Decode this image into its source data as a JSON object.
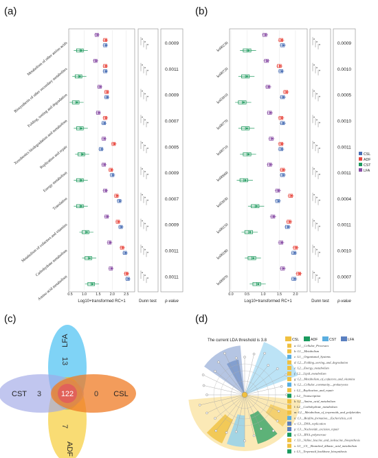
{
  "panels": {
    "a": "(a)",
    "b": "(b)",
    "c": "(c)",
    "d": "(d)"
  },
  "colors": {
    "CSL": "#4a6fb5",
    "ADF": "#e8483f",
    "CST": "#1f9a5e",
    "LFA": "#8a4fa6"
  },
  "groups_legend": [
    "CSL",
    "ADF",
    "CST",
    "LFA"
  ],
  "shared_labels": {
    "xlabel": "Log10+transformed RC+1",
    "dunn": "Dunn test",
    "pvalue": "p-value"
  },
  "chart_data": [
    {
      "type": "box",
      "panel": "a",
      "categories": [
        "Metabolism of other amino acids",
        "Biosynthesis of other secondary metabolites",
        "Folding, sorting and degradation",
        "Xenobiotics biodegradation and metabolism",
        "Replication and repair",
        "Energy metabolism",
        "Translation",
        "Metabolism of cofactors and vitamins",
        "Carbohydrate metabolism",
        "Amino acid metabolism"
      ],
      "xticks": [
        0.5,
        1.0,
        1.5,
        2.0,
        2.5
      ],
      "xlim": [
        0.5,
        2.75
      ],
      "xlabel": "Log10+transformed RC+1",
      "series": [
        {
          "name": "LFA",
          "medians": [
            1.45,
            1.4,
            1.55,
            1.5,
            1.7,
            1.7,
            1.75,
            1.8,
            1.9,
            1.95
          ]
        },
        {
          "name": "ADF",
          "medians": [
            1.75,
            1.75,
            1.8,
            1.75,
            2.05,
            1.95,
            2.15,
            2.2,
            2.35,
            2.5
          ]
        },
        {
          "name": "CSL",
          "medians": [
            1.75,
            1.75,
            1.8,
            1.7,
            1.6,
            2.0,
            2.25,
            2.3,
            2.45,
            2.55
          ]
        },
        {
          "name": "CST",
          "medians": [
            0.85,
            0.8,
            0.7,
            0.85,
            0.9,
            0.85,
            0.85,
            1.05,
            1.15,
            1.25
          ]
        }
      ],
      "pvalues": [
        "0.0009",
        "0.0011",
        "0.0009",
        "0.0007",
        "0.0005",
        "0.0009",
        "0.0007",
        "0.0009",
        "0.0011",
        "0.0011"
      ]
    },
    {
      "type": "box",
      "panel": "b",
      "categories": [
        "ko00230",
        "ko00720",
        "ko03010",
        "ko00770",
        "ko00710",
        "ko00660",
        "ko03030",
        "ko00250",
        "ko00280",
        "ko00970"
      ],
      "xticks": [
        0.0,
        0.5,
        1.0,
        1.5,
        2.0
      ],
      "xlim": [
        0.0,
        2.3
      ],
      "xlabel": "Log10+transformed RC+1",
      "series": [
        {
          "name": "LFA",
          "medians": [
            1.05,
            1.1,
            1.15,
            1.2,
            1.25,
            1.2,
            1.45,
            1.3,
            1.55,
            1.6
          ]
        },
        {
          "name": "ADF",
          "medians": [
            1.55,
            1.5,
            1.7,
            1.55,
            1.55,
            1.6,
            1.85,
            1.8,
            2.0,
            2.1
          ]
        },
        {
          "name": "CSL",
          "medians": [
            1.6,
            1.55,
            1.6,
            1.6,
            1.55,
            1.6,
            1.45,
            1.75,
            1.95,
            1.95
          ]
        },
        {
          "name": "CST",
          "medians": [
            0.5,
            0.45,
            0.35,
            0.45,
            0.5,
            0.4,
            0.75,
            0.55,
            0.65,
            0.8
          ]
        }
      ],
      "pvalues": [
        "0.0009",
        "0.0010",
        "0.0005",
        "0.0010",
        "0.0011",
        "0.0011",
        "0.0004",
        "0.0011",
        "0.0010",
        "0.0007"
      ]
    },
    {
      "type": "venn",
      "panel": "c",
      "sets": [
        "LFA",
        "CST",
        "CSL",
        "ADF"
      ],
      "unique": {
        "LFA": 13,
        "CST": 3,
        "CSL": 0,
        "ADF": 7
      },
      "shared_all": 122
    },
    {
      "type": "cladogram",
      "panel": "d",
      "title": "The current LDA threshold is 3.8",
      "legend": [
        "CSL",
        "ADF",
        "CST",
        "LFA"
      ],
      "items": [
        {
          "id": "a",
          "label": "a: L1__Cellular_Processes",
          "color": "#f0c040"
        },
        {
          "id": "b",
          "label": "b: L1__Metabolism",
          "color": "#f0c040"
        },
        {
          "id": "c",
          "label": "c: L1__Organismal_Systems",
          "color": "#5aaee0"
        },
        {
          "id": "d",
          "label": "d: L2__Folding_sorting_and_degradation",
          "color": "#f0c040"
        },
        {
          "id": "e",
          "label": "e: L2__Energy_metabolism",
          "color": "#f0c040"
        },
        {
          "id": "f",
          "label": "f: L2__Lipid_metabolism",
          "color": "#f0c040"
        },
        {
          "id": "g",
          "label": "g: L2__Metabolism_of_cofactors_and_vitamins",
          "color": "#f0c040"
        },
        {
          "id": "h",
          "label": "h: L2__Cellular_community__prokaryotes",
          "color": "#5aaee0"
        },
        {
          "id": "i",
          "label": "i: L2__Replication_and_repair",
          "color": "#f0c040"
        },
        {
          "id": "j",
          "label": "j: L2__Transcription",
          "color": "#1a9a5e"
        },
        {
          "id": "k",
          "label": "k: L2__Amino_acid_metabolism",
          "color": "#f0c040"
        },
        {
          "id": "l",
          "label": "l: L2__Carbohydrate_metabolism",
          "color": "#f0c040"
        },
        {
          "id": "m",
          "label": "m: L2__Metabolism_of_terpenoids_and_polyketides",
          "color": "#f0c040"
        },
        {
          "id": "n",
          "label": "n: L3__Biofilm_formation__Escherichia_coli",
          "color": "#5aaee0"
        },
        {
          "id": "o",
          "label": "o: L3__DNA_replication",
          "color": "#5a7fc0"
        },
        {
          "id": "p",
          "label": "p: L3__Nucleotide_excision_repair",
          "color": "#5a7fc0"
        },
        {
          "id": "q",
          "label": "q: L3__RNA_polymerase",
          "color": "#1a9a5e"
        },
        {
          "id": "r",
          "label": "r: L3__Valine_leucine_and_isoleucine_biosynthesis",
          "color": "#f0c040"
        },
        {
          "id": "s",
          "label": "s: L3__C5__Branched_dibasic_acid_metabolism",
          "color": "#f0c040"
        },
        {
          "id": "t",
          "label": "t: L3__Terpenoid_backbone_biosynthesis",
          "color": "#1a9a5e"
        }
      ]
    }
  ]
}
